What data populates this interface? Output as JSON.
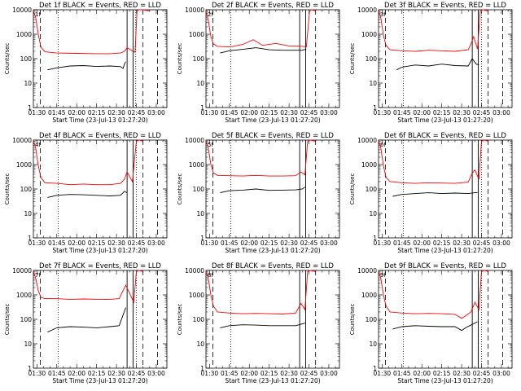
{
  "figure": {
    "panel_count": 9
  },
  "chart_data": [
    {
      "type": "line",
      "title": "Det 1f BLACK = Events, RED = LLD",
      "xlabel": "Start Time (23-Jul-13 01:27:20)",
      "ylabel": "Counts/sec",
      "yscale": "log",
      "ylim": [
        1,
        10000
      ],
      "xlim": [
        "01:27:20",
        "03:08:00"
      ],
      "y_ticks": [
        "1",
        "10",
        "100",
        "1000",
        "10000"
      ],
      "x_ticks": [
        "01:30",
        "01:45",
        "02:00",
        "02:15",
        "02:30",
        "02:45",
        "03:00"
      ],
      "series": [
        {
          "name": "BLACK = Events",
          "color": "#000000",
          "x": [
            "01:38:00",
            "01:45:00",
            "01:55:00",
            "02:05:00",
            "02:15:00",
            "02:25:00",
            "02:33:00",
            "02:35:00",
            "02:36:00",
            "02:37:00"
          ],
          "y": [
            35,
            42,
            50,
            52,
            48,
            50,
            47,
            40,
            60,
            75
          ]
        },
        {
          "name": "RED = LLD",
          "color": "#ff0000",
          "x": [
            "01:27:20",
            "01:29:00",
            "01:31:00",
            "01:33:00",
            "01:36:00",
            "01:45:00",
            "02:00:00",
            "02:15:00",
            "02:25:00",
            "02:33:00",
            "02:36:00",
            "02:38:00",
            "02:44:00",
            "02:45:30",
            "02:47:00",
            "02:50:00",
            "02:55:00"
          ],
          "y": [
            9000,
            5000,
            1000,
            300,
            190,
            170,
            165,
            160,
            160,
            170,
            200,
            280,
            180,
            9000,
            10000,
            10000,
            9000
          ]
        }
      ],
      "vlines_dashed": [
        "01:32:30",
        "02:50:00",
        "03:01:00"
      ],
      "vlines_dotted": [
        "01:46:00",
        "02:44:30"
      ],
      "vlines_solid": [
        "02:38:00",
        "02:42:30"
      ],
      "annotation": "1f"
    },
    {
      "type": "line",
      "title": "Det 2f BLACK = Events, RED = LLD",
      "xlabel": "Start Time (23-Jul-13 01:27:20)",
      "ylabel": "Counts/sec",
      "yscale": "log",
      "ylim": [
        1,
        10000
      ],
      "xlim": [
        "01:27:20",
        "03:08:00"
      ],
      "y_ticks": [
        "1",
        "10",
        "100",
        "1000",
        "10000"
      ],
      "x_ticks": [
        "01:30",
        "01:45",
        "02:00",
        "02:15",
        "02:30",
        "02:45",
        "03:00"
      ],
      "series": [
        {
          "name": "BLACK = Events",
          "color": "#000000",
          "x": [
            "01:38:00",
            "01:45:00",
            "01:55:00",
            "02:05:00",
            "02:15:00",
            "02:25:00",
            "02:35:00",
            "02:40:00",
            "02:41:00",
            "02:43:00"
          ],
          "y": [
            170,
            210,
            240,
            280,
            230,
            220,
            220,
            220,
            230,
            240
          ]
        },
        {
          "name": "RED = LLD",
          "color": "#ff0000",
          "x": [
            "01:27:20",
            "01:29:00",
            "01:31:00",
            "01:33:00",
            "01:36:00",
            "01:45:00",
            "01:55:00",
            "02:03:00",
            "02:10:00",
            "02:20:00",
            "02:30:00",
            "02:40:00",
            "02:43:00",
            "02:45:30",
            "02:47:00",
            "02:50:00"
          ],
          "y": [
            9000,
            4000,
            800,
            400,
            320,
            300,
            380,
            600,
            350,
            420,
            330,
            320,
            300,
            9000,
            10000,
            9000
          ]
        }
      ],
      "vlines_dashed": [
        "01:32:30",
        "02:50:00"
      ],
      "vlines_dotted": [
        "01:46:00"
      ],
      "vlines_solid": [
        "02:38:00",
        "02:42:30"
      ],
      "annotation": "2f"
    },
    {
      "type": "line",
      "title": "Det 3f BLACK = Events, RED = LLD",
      "xlabel": "Start Time (23-Jul-13 01:27:20)",
      "ylabel": "Counts/sec",
      "yscale": "log",
      "ylim": [
        1,
        10000
      ],
      "xlim": [
        "01:27:20",
        "03:08:00"
      ],
      "y_ticks": [
        "1",
        "10",
        "100",
        "1000",
        "10000"
      ],
      "x_ticks": [
        "01:30",
        "01:45",
        "02:00",
        "02:15",
        "02:30",
        "02:45",
        "03:00"
      ],
      "series": [
        {
          "name": "BLACK = Events",
          "color": "#000000",
          "x": [
            "01:41:00",
            "01:45:00",
            "01:55:00",
            "02:05:00",
            "02:15:00",
            "02:25:00",
            "02:35:00",
            "02:38:00",
            "02:41:00",
            "02:43:00"
          ],
          "y": [
            35,
            45,
            55,
            50,
            60,
            52,
            50,
            100,
            60,
            55
          ]
        },
        {
          "name": "RED = LLD",
          "color": "#ff0000",
          "x": [
            "01:27:20",
            "01:29:00",
            "01:31:00",
            "01:33:00",
            "01:36:00",
            "01:45:00",
            "01:55:00",
            "02:05:00",
            "02:15:00",
            "02:25:00",
            "02:35:00",
            "02:37:00",
            "02:39:00",
            "02:42:00",
            "02:44:00",
            "02:46:00",
            "02:50:00"
          ],
          "y": [
            9000,
            5000,
            900,
            350,
            230,
            210,
            200,
            220,
            210,
            200,
            230,
            400,
            800,
            250,
            9000,
            10000,
            9000
          ]
        }
      ],
      "vlines_dashed": [
        "01:32:30",
        "02:50:00",
        "03:01:00"
      ],
      "vlines_dotted": [
        "01:46:00",
        "02:45:00"
      ],
      "vlines_solid": [
        "02:38:00",
        "02:42:30"
      ],
      "annotation": "3f"
    },
    {
      "type": "line",
      "title": "Det 4f BLACK = Events, RED = LLD",
      "xlabel": "Start Time (23-Jul-13 01:27:20)",
      "ylabel": "Counts/sec",
      "yscale": "log",
      "ylim": [
        1,
        10000
      ],
      "xlim": [
        "01:27:20",
        "03:08:00"
      ],
      "y_ticks": [
        "1",
        "10",
        "100",
        "1000",
        "10000"
      ],
      "x_ticks": [
        "01:30",
        "01:45",
        "02:00",
        "02:15",
        "02:30",
        "02:45",
        "03:00"
      ],
      "series": [
        {
          "name": "BLACK = Events",
          "color": "#000000",
          "x": [
            "01:38:00",
            "01:45:00",
            "01:55:00",
            "02:05:00",
            "02:15:00",
            "02:25:00",
            "02:33:00",
            "02:36:00",
            "02:38:00"
          ],
          "y": [
            45,
            55,
            60,
            58,
            55,
            52,
            55,
            80,
            70
          ]
        },
        {
          "name": "RED = LLD",
          "color": "#ff0000",
          "x": [
            "01:27:20",
            "01:29:00",
            "01:31:00",
            "01:33:00",
            "01:36:00",
            "01:45:00",
            "01:55:00",
            "02:05:00",
            "02:15:00",
            "02:25:00",
            "02:33:00",
            "02:36:00",
            "02:38:00",
            "02:42:00",
            "02:45:00",
            "02:47:00",
            "02:50:00"
          ],
          "y": [
            9000,
            5000,
            900,
            300,
            180,
            170,
            150,
            160,
            150,
            150,
            170,
            250,
            500,
            200,
            9000,
            10000,
            9000
          ]
        }
      ],
      "vlines_dashed": [
        "01:32:30",
        "02:50:00",
        "03:01:00"
      ],
      "vlines_dotted": [
        "01:46:00",
        "02:45:00"
      ],
      "vlines_solid": [
        "02:38:00",
        "02:42:30"
      ],
      "annotation": "4f"
    },
    {
      "type": "line",
      "title": "Det 5f BLACK = Events, RED = LLD",
      "xlabel": "Start Time (23-Jul-13 01:27:20)",
      "ylabel": "Counts/sec",
      "yscale": "log",
      "ylim": [
        1,
        10000
      ],
      "xlim": [
        "01:27:20",
        "03:08:00"
      ],
      "y_ticks": [
        "1",
        "10",
        "100",
        "1000",
        "10000"
      ],
      "x_ticks": [
        "01:30",
        "01:45",
        "02:00",
        "02:15",
        "02:30",
        "02:45",
        "03:00"
      ],
      "series": [
        {
          "name": "BLACK = Events",
          "color": "#000000",
          "x": [
            "01:38:00",
            "01:45:00",
            "01:55:00",
            "02:05:00",
            "02:15:00",
            "02:25:00",
            "02:35:00",
            "02:40:00",
            "02:42:00"
          ],
          "y": [
            70,
            85,
            90,
            100,
            88,
            90,
            92,
            100,
            120
          ]
        },
        {
          "name": "RED = LLD",
          "color": "#ff0000",
          "x": [
            "01:27:20",
            "01:29:00",
            "01:31:00",
            "01:33:00",
            "01:36:00",
            "01:45:00",
            "01:55:00",
            "02:05:00",
            "02:15:00",
            "02:25:00",
            "02:35:00",
            "02:39:00",
            "02:42:00",
            "02:44:00",
            "02:46:00",
            "02:50:00"
          ],
          "y": [
            9000,
            5000,
            1000,
            450,
            360,
            350,
            340,
            360,
            340,
            340,
            350,
            500,
            380,
            9000,
            10000,
            9000
          ]
        }
      ],
      "vlines_dashed": [
        "01:32:30",
        "02:50:00"
      ],
      "vlines_dotted": [
        "01:46:00"
      ],
      "vlines_solid": [
        "02:38:00",
        "02:42:30"
      ],
      "annotation": "5f"
    },
    {
      "type": "line",
      "title": "Det 6f BLACK = Events, RED = LLD",
      "xlabel": "Start Time (23-Jul-13 01:27:20)",
      "ylabel": "Counts/sec",
      "yscale": "log",
      "ylim": [
        1,
        10000
      ],
      "xlim": [
        "01:27:20",
        "03:08:00"
      ],
      "y_ticks": [
        "1",
        "10",
        "100",
        "1000",
        "10000"
      ],
      "x_ticks": [
        "01:30",
        "01:45",
        "02:00",
        "02:15",
        "02:30",
        "02:45",
        "03:00"
      ],
      "series": [
        {
          "name": "BLACK = Events",
          "color": "#000000",
          "x": [
            "01:38:00",
            "01:45:00",
            "01:55:00",
            "02:05:00",
            "02:15:00",
            "02:25:00",
            "02:35:00",
            "02:40:00",
            "02:42:00"
          ],
          "y": [
            50,
            60,
            65,
            70,
            65,
            68,
            65,
            70,
            72
          ]
        },
        {
          "name": "RED = LLD",
          "color": "#ff0000",
          "x": [
            "01:27:20",
            "01:29:00",
            "01:31:00",
            "01:33:00",
            "01:36:00",
            "01:45:00",
            "01:55:00",
            "02:05:00",
            "02:15:00",
            "02:25:00",
            "02:35:00",
            "02:38:00",
            "02:40:00",
            "02:43:00",
            "02:45:00",
            "02:47:00",
            "02:50:00"
          ],
          "y": [
            9000,
            5000,
            900,
            300,
            200,
            180,
            170,
            180,
            175,
            170,
            190,
            450,
            600,
            250,
            9000,
            10000,
            9000
          ]
        }
      ],
      "vlines_dashed": [
        "01:32:30",
        "02:50:00",
        "03:01:00"
      ],
      "vlines_dotted": [
        "01:46:00",
        "02:45:00"
      ],
      "vlines_solid": [
        "02:38:00",
        "02:42:30"
      ],
      "annotation": "6f"
    },
    {
      "type": "line",
      "title": "Det 7f BLACK = Events, RED = LLD",
      "xlabel": "Start Time (23-Jul-13 01:27:20)",
      "ylabel": "Counts/sec",
      "yscale": "log",
      "ylim": [
        1,
        10000
      ],
      "xlim": [
        "01:27:20",
        "03:08:00"
      ],
      "y_ticks": [
        "1",
        "10",
        "100",
        "1000",
        "10000"
      ],
      "x_ticks": [
        "01:30",
        "01:45",
        "02:00",
        "02:15",
        "02:30",
        "02:45",
        "03:00"
      ],
      "series": [
        {
          "name": "BLACK = Events",
          "color": "#000000",
          "x": [
            "01:38:00",
            "01:45:00",
            "01:55:00",
            "02:05:00",
            "02:15:00",
            "02:25:00",
            "02:32:00",
            "02:35:00",
            "02:37:00"
          ],
          "y": [
            30,
            45,
            50,
            48,
            45,
            50,
            55,
            150,
            300
          ]
        },
        {
          "name": "RED = LLD",
          "color": "#ff0000",
          "x": [
            "01:27:20",
            "01:29:00",
            "01:31:00",
            "01:33:00",
            "01:36:00",
            "01:45:00",
            "01:55:00",
            "02:05:00",
            "02:15:00",
            "02:25:00",
            "02:32:00",
            "02:35:00",
            "02:37:00",
            "02:43:00",
            "02:45:00",
            "02:47:00",
            "02:50:00"
          ],
          "y": [
            9000,
            5000,
            1500,
            800,
            700,
            700,
            650,
            680,
            660,
            650,
            700,
            1500,
            2500,
            500,
            9000,
            10000,
            9000
          ]
        }
      ],
      "vlines_dashed": [
        "01:32:30",
        "02:50:00",
        "03:01:00"
      ],
      "vlines_dotted": [
        "01:46:00",
        "02:45:00"
      ],
      "vlines_solid": [
        "02:38:00",
        "02:42:30"
      ],
      "annotation": "7f"
    },
    {
      "type": "line",
      "title": "Det 8f BLACK = Events, RED = LLD",
      "xlabel": "Start Time (23-Jul-13 01:27:20)",
      "ylabel": "Counts/sec",
      "yscale": "log",
      "ylim": [
        1,
        10000
      ],
      "xlim": [
        "01:27:20",
        "03:08:00"
      ],
      "y_ticks": [
        "1",
        "10",
        "100",
        "1000",
        "10000"
      ],
      "x_ticks": [
        "01:30",
        "01:45",
        "02:00",
        "02:15",
        "02:30",
        "02:45",
        "03:00"
      ],
      "series": [
        {
          "name": "BLACK = Events",
          "color": "#000000",
          "x": [
            "01:38:00",
            "01:45:00",
            "01:55:00",
            "02:05:00",
            "02:15:00",
            "02:25:00",
            "02:35:00",
            "02:40:00",
            "02:42:00"
          ],
          "y": [
            45,
            55,
            60,
            58,
            55,
            55,
            55,
            65,
            70
          ]
        },
        {
          "name": "RED = LLD",
          "color": "#ff0000",
          "x": [
            "01:27:20",
            "01:29:00",
            "01:31:00",
            "01:33:00",
            "01:36:00",
            "01:45:00",
            "01:55:00",
            "02:05:00",
            "02:15:00",
            "02:25:00",
            "02:35:00",
            "02:39:00",
            "02:42:00",
            "02:44:00",
            "02:46:00",
            "02:50:00"
          ],
          "y": [
            9000,
            5000,
            1000,
            350,
            200,
            180,
            170,
            175,
            170,
            165,
            180,
            450,
            250,
            9000,
            10000,
            9000
          ]
        }
      ],
      "vlines_dashed": [
        "01:32:30",
        "02:50:00"
      ],
      "vlines_dotted": [
        "01:46:00"
      ],
      "vlines_solid": [
        "02:38:00",
        "02:42:30"
      ],
      "annotation": "8f"
    },
    {
      "type": "line",
      "title": "Det 9f BLACK = Events, RED = LLD",
      "xlabel": "Start Time (23-Jul-13 01:27:20)",
      "ylabel": "Counts/sec",
      "yscale": "log",
      "ylim": [
        1,
        10000
      ],
      "xlim": [
        "01:27:20",
        "03:08:00"
      ],
      "y_ticks": [
        "1",
        "10",
        "100",
        "1000",
        "10000"
      ],
      "x_ticks": [
        "01:30",
        "01:45",
        "02:00",
        "02:15",
        "02:30",
        "02:45",
        "03:00"
      ],
      "series": [
        {
          "name": "BLACK = Events",
          "color": "#000000",
          "x": [
            "01:38:00",
            "01:45:00",
            "01:55:00",
            "02:05:00",
            "02:15:00",
            "02:25:00",
            "02:30:00",
            "02:33:00",
            "02:36:00",
            "02:40:00",
            "02:42:00"
          ],
          "y": [
            40,
            50,
            55,
            52,
            50,
            50,
            35,
            45,
            55,
            70,
            80
          ]
        },
        {
          "name": "RED = LLD",
          "color": "#ff0000",
          "x": [
            "01:27:20",
            "01:29:00",
            "01:31:00",
            "01:33:00",
            "01:36:00",
            "01:45:00",
            "01:55:00",
            "02:05:00",
            "02:15:00",
            "02:25:00",
            "02:30:00",
            "02:33:00",
            "02:37:00",
            "02:40:00",
            "02:43:00",
            "02:45:00",
            "02:47:00",
            "02:50:00"
          ],
          "y": [
            9000,
            5000,
            1000,
            350,
            200,
            180,
            170,
            175,
            170,
            160,
            110,
            140,
            200,
            500,
            250,
            9000,
            10000,
            9000
          ]
        }
      ],
      "vlines_dashed": [
        "01:32:30",
        "02:50:00",
        "03:01:00"
      ],
      "vlines_dotted": [
        "01:46:00",
        "02:45:00"
      ],
      "vlines_solid": [
        "02:38:00",
        "02:42:30"
      ],
      "annotation": "9f"
    }
  ]
}
